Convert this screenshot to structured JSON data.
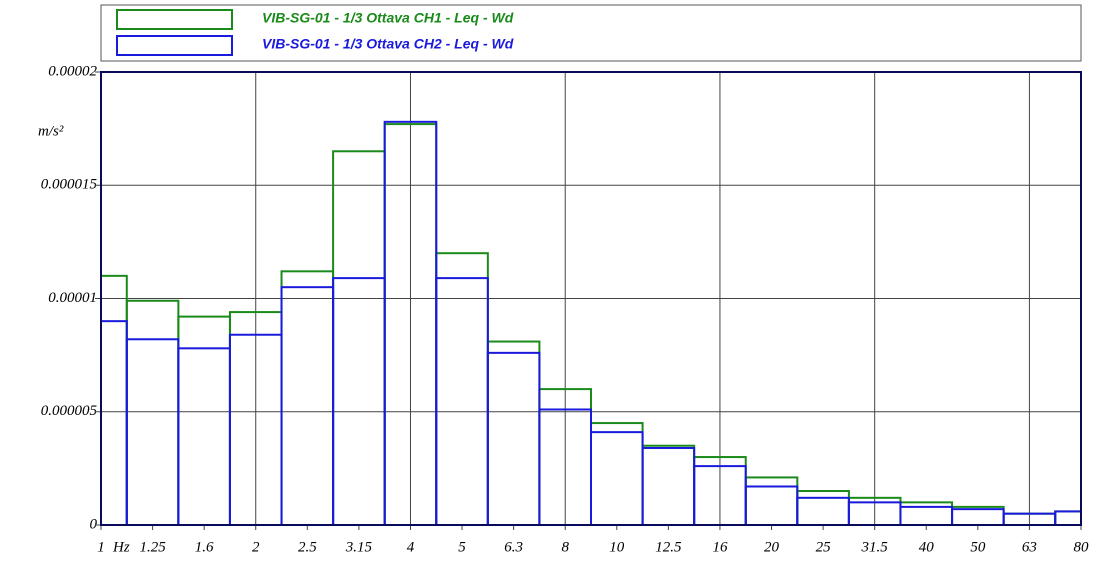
{
  "chart_data": {
    "type": "bar",
    "categories": [
      "1",
      "1.25",
      "1.6",
      "2",
      "2.5",
      "3.15",
      "4",
      "5",
      "6.3",
      "8",
      "10",
      "12.5",
      "16",
      "20",
      "25",
      "31.5",
      "40",
      "50",
      "63",
      "80"
    ],
    "x_unit": "Hz",
    "y_unit": "m/s²",
    "series": [
      {
        "name": "VIB-SG-01 - 1/3 Ottava CH1 - Leq - Wd",
        "color": "#1a8a1a",
        "values": [
          1.1e-05,
          9.9e-06,
          9.2e-06,
          9.4e-06,
          1.12e-05,
          1.65e-05,
          1.77e-05,
          1.2e-05,
          8.1e-06,
          6e-06,
          4.5e-06,
          3.5e-06,
          3e-06,
          2.1e-06,
          1.5e-06,
          1.2e-06,
          1e-06,
          8e-07,
          5e-07,
          6e-07
        ]
      },
      {
        "name": "VIB-SG-01 - 1/3 Ottava CH2 - Leq - Wd",
        "color": "#1a1adc",
        "values": [
          9e-06,
          8.2e-06,
          7.8e-06,
          8.4e-06,
          1.05e-05,
          1.09e-05,
          1.78e-05,
          1.09e-05,
          7.6e-06,
          5.1e-06,
          4.1e-06,
          3.4e-06,
          2.6e-06,
          1.7e-06,
          1.2e-06,
          1e-06,
          8e-07,
          7e-07,
          5e-07,
          6e-07
        ]
      }
    ],
    "ylim": [
      0,
      2e-05
    ],
    "yticks": [
      0,
      5e-06,
      1e-05,
      1.5e-05,
      2e-05
    ],
    "x_grid_every": 3,
    "grid": true,
    "legend": "top"
  }
}
